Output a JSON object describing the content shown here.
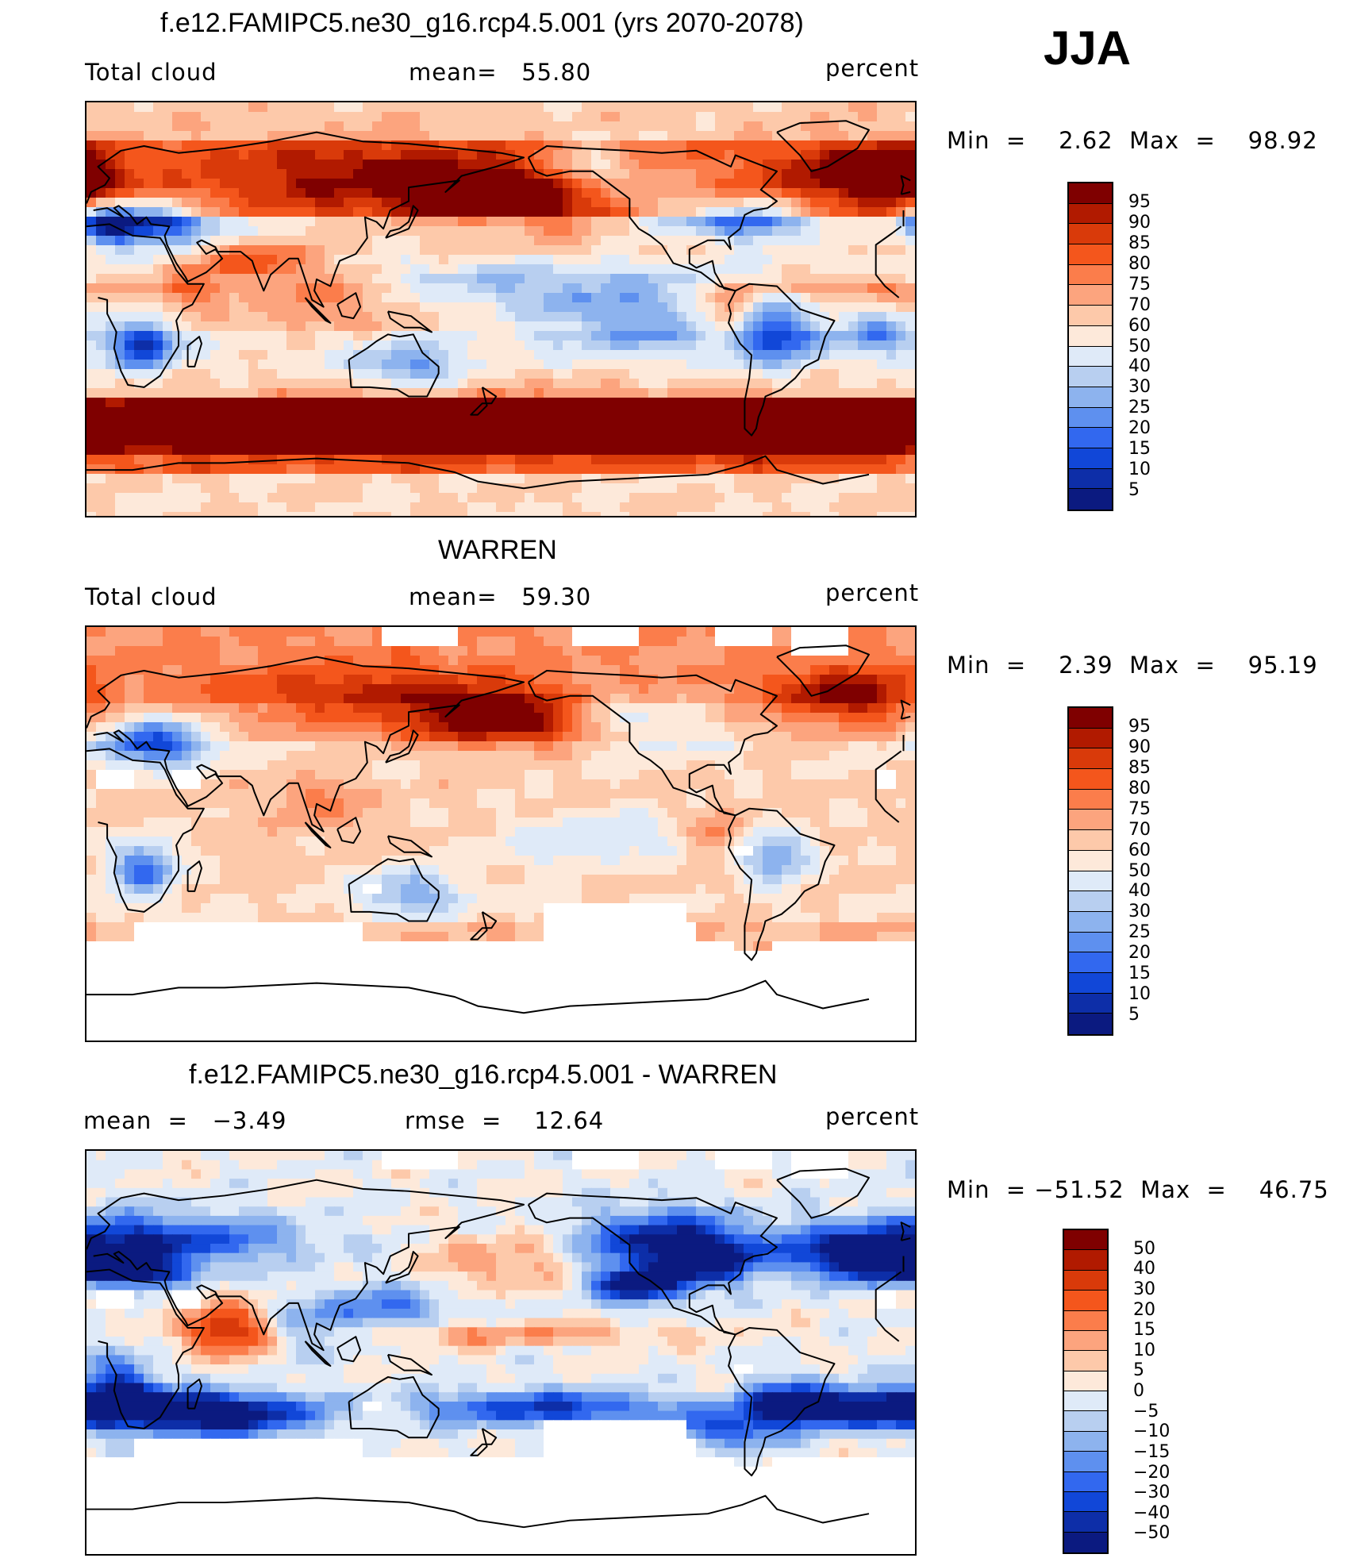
{
  "season": "JJA",
  "panels": [
    {
      "title": "f.e12.FAMIPC5.ne30_g16.rcp4.5.001 (yrs 2070-2078)",
      "left_label": "Total cloud",
      "center_label": "mean=   55.80",
      "right_label": "percent",
      "minmax": "Min  =    2.62  Max  =    98.92",
      "field": "model",
      "colorbar_labels": [
        "95",
        "90",
        "85",
        "80",
        "75",
        "70",
        "60",
        "50",
        "40",
        "30",
        "25",
        "20",
        "15",
        "10",
        "5"
      ]
    },
    {
      "title": "WARREN",
      "left_label": "Total cloud",
      "center_label": "mean=   59.30",
      "right_label": "percent",
      "minmax": "Min  =    2.39  Max  =    95.19",
      "field": "obs",
      "colorbar_labels": [
        "95",
        "90",
        "85",
        "80",
        "75",
        "70",
        "60",
        "50",
        "40",
        "30",
        "25",
        "20",
        "15",
        "10",
        "5"
      ]
    },
    {
      "title": "f.e12.FAMIPC5.ne30_g16.rcp4.5.001 - WARREN",
      "left_label": "mean  =   −3.49",
      "center_label": "rmse  =    12.64",
      "right_label": "percent",
      "minmax": "Min  = −51.52  Max  =    46.75",
      "field": "diff",
      "colorbar_labels": [
        "50",
        "40",
        "30",
        "20",
        "15",
        "10",
        "5",
        "0",
        "−5",
        "−10",
        "−15",
        "−20",
        "−30",
        "−40",
        "−50"
      ]
    }
  ],
  "colors": {
    "scale16": [
      "#7f0000",
      "#b11a00",
      "#d93a0a",
      "#f4561c",
      "#fb7d4b",
      "#fca47e",
      "#fdc9aa",
      "#fde9da",
      "#dfeaf8",
      "#b8cff0",
      "#8db3ee",
      "#5e90ef",
      "#3268ef",
      "#1147d8",
      "#0d2ea8",
      "#0b1a80"
    ],
    "missing": "#ffffff",
    "coast": "#000000"
  },
  "chart_data": {
    "type": "heatmap",
    "description_units": "percent",
    "maps": [
      {
        "name": "model",
        "mean": 55.8,
        "min": 2.62,
        "max": 98.92,
        "levels": [
          5,
          10,
          15,
          20,
          25,
          30,
          40,
          50,
          60,
          70,
          75,
          80,
          85,
          90,
          95
        ]
      },
      {
        "name": "obs",
        "mean": 59.3,
        "min": 2.39,
        "max": 95.19,
        "levels": [
          5,
          10,
          15,
          20,
          25,
          30,
          40,
          50,
          60,
          70,
          75,
          80,
          85,
          90,
          95
        ]
      },
      {
        "name": "diff",
        "mean": -3.49,
        "rmse": 12.64,
        "min": -51.52,
        "max": 46.75,
        "levels": [
          -50,
          -40,
          -30,
          -20,
          -15,
          -10,
          -5,
          0,
          5,
          10,
          15,
          20,
          30,
          40,
          50
        ]
      }
    ]
  }
}
